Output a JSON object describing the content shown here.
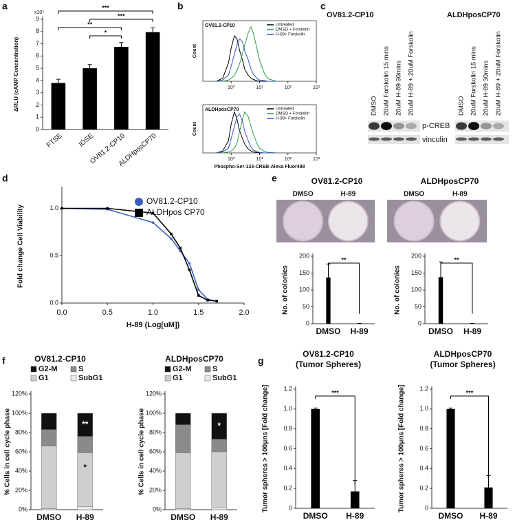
{
  "panels": [
    "a",
    "b",
    "c",
    "d",
    "e",
    "f",
    "g"
  ],
  "blot": {
    "cell_lines": [
      "OV81.2-CP10",
      "ALDHposCP70"
    ],
    "lanes": [
      "DMSO",
      "20uM Forskolin 15 mins",
      "20uM H-89 30mins",
      "20uM H-89 + 20uM Forskolin"
    ],
    "bands": [
      "p-CREB",
      "vinculin"
    ]
  },
  "chart_data": [
    {
      "type": "bar",
      "categories": [
        "FTSE",
        "IOSE",
        "OV81.2-CP10",
        "ALDHposCP70"
      ],
      "values": [
        3.8,
        5.0,
        6.75,
        7.95
      ],
      "errors": [
        0.3,
        0.3,
        0.35,
        0.35
      ],
      "color": "#000000",
      "ylim": [
        0,
        9
      ],
      "yticks": [
        0,
        1,
        2,
        3,
        4,
        5,
        6,
        7,
        8,
        9
      ],
      "ylabel": "ΔRLU (cAMP Concentration)",
      "scale_label": "x10³",
      "annotations": [
        "***",
        "***",
        "**",
        "*"
      ]
    },
    {
      "type": "line",
      "title": "OV81.2-CP10",
      "ylabel": "Count",
      "xscale": "log",
      "xlim": [
        0.1,
        1000
      ],
      "xticks": [
        {
          "value": 1,
          "label": "10⁰"
        },
        {
          "value": 10,
          "label": "10¹"
        },
        {
          "value": 100,
          "label": "10²"
        },
        {
          "value": 1000,
          "label": "10³"
        }
      ],
      "ylim": [
        0,
        100
      ],
      "legend": "upper right",
      "x": [
        0.3,
        0.5,
        0.8,
        1,
        1.3,
        1.6,
        2,
        2.5,
        3,
        4,
        5,
        6,
        8,
        10,
        15,
        20,
        40
      ],
      "series": [
        {
          "name": "Untreated",
          "color": "#000000",
          "values": [
            0,
            5,
            30,
            55,
            75,
            70,
            50,
            35,
            20,
            10,
            5,
            3,
            1,
            0,
            0,
            0,
            0
          ]
        },
        {
          "name": "DMSO + Forskolin",
          "color": "#2e9a3e",
          "values": [
            0,
            0,
            2,
            5,
            10,
            18,
            30,
            45,
            60,
            80,
            90,
            80,
            55,
            35,
            12,
            4,
            0
          ]
        },
        {
          "name": "H-89+ Forskolin",
          "color": "#3350c8",
          "values": [
            0,
            2,
            10,
            25,
            45,
            60,
            70,
            65,
            50,
            35,
            20,
            12,
            5,
            2,
            1,
            0,
            0
          ]
        }
      ]
    },
    {
      "type": "line",
      "title": "ALDHposCP70",
      "ylabel": "Count",
      "xlabel": "Phospho-Ser-133-CREB-Alexa Fluor488",
      "xscale": "log",
      "xlim": [
        0.1,
        1000
      ],
      "xticks": [
        {
          "value": 1,
          "label": "10⁰"
        },
        {
          "value": 10,
          "label": "10¹"
        },
        {
          "value": 100,
          "label": "10²"
        },
        {
          "value": 1000,
          "label": "10³"
        }
      ],
      "ylim": [
        0,
        100
      ],
      "legend": "upper right",
      "x": [
        0.3,
        0.5,
        0.8,
        1,
        1.3,
        1.6,
        2,
        2.5,
        3,
        4,
        5,
        6,
        8,
        10,
        15,
        20,
        40
      ],
      "series": [
        {
          "name": "Untreated",
          "color": "#000000",
          "values": [
            0,
            4,
            25,
            60,
            85,
            70,
            45,
            30,
            18,
            8,
            4,
            2,
            1,
            0,
            0,
            0,
            0
          ]
        },
        {
          "name": "DMSO + Forskolin",
          "color": "#2e9a3e",
          "values": [
            0,
            0,
            2,
            4,
            10,
            20,
            45,
            70,
            85,
            75,
            55,
            40,
            20,
            10,
            3,
            1,
            0
          ]
        },
        {
          "name": "H-89+ Forskolin",
          "color": "#3350c8",
          "values": [
            0,
            2,
            10,
            30,
            55,
            75,
            80,
            65,
            45,
            25,
            12,
            6,
            3,
            1,
            0,
            0,
            0
          ]
        }
      ]
    },
    {
      "type": "line",
      "xlabel": "H-89  (Log[uM])",
      "ylabel": "Fold change Cell Viability",
      "legend": "upper right",
      "xlim": [
        0,
        2
      ],
      "xticks": [
        {
          "value": 0,
          "label": "0.0"
        },
        0.5,
        {
          "value": 1,
          "label": "1.0"
        },
        1.5,
        {
          "value": 2,
          "label": "2.0"
        }
      ],
      "ylim": [
        0,
        1.2
      ],
      "yticks": [
        {
          "value": 0,
          "label": "0.0"
        },
        0.5,
        {
          "value": 1,
          "label": "1.0"
        }
      ],
      "x": [
        0,
        0.5,
        1.0,
        1.2,
        1.3,
        1.4,
        1.5,
        1.6,
        1.7
      ],
      "series": [
        {
          "name": "OV81.2-CP10",
          "color": "#3b5fc0",
          "marker": "circle",
          "values": [
            1.0,
            0.99,
            0.85,
            0.68,
            0.55,
            0.42,
            0.14,
            0.04,
            0.02
          ]
        },
        {
          "name": "ALDHpos CP70",
          "color": "#000000",
          "marker": "square",
          "values": [
            1.0,
            1.0,
            0.95,
            0.73,
            0.58,
            0.35,
            0.08,
            0.03,
            0.02
          ]
        }
      ]
    },
    {
      "type": "bar",
      "title": "OV81.2-CP10",
      "categories": [
        "DMSO",
        "H-89"
      ],
      "values": [
        137,
        1
      ],
      "errors": [
        40,
        0
      ],
      "color": "#000000",
      "ylim": [
        0,
        200
      ],
      "yticks": [
        0,
        50,
        100,
        150,
        200
      ],
      "ylabel": "No. of colonies",
      "annotations": [
        "**"
      ]
    },
    {
      "type": "bar",
      "title": "ALDHposCP70",
      "categories": [
        "DMSO",
        "H-89"
      ],
      "values": [
        138,
        1
      ],
      "errors": [
        45,
        0
      ],
      "color": "#000000",
      "ylim": [
        0,
        200
      ],
      "yticks": [
        0,
        50,
        100,
        150,
        200
      ],
      "ylabel": "No. of colonies",
      "annotations": [
        "**"
      ]
    },
    {
      "type": "stacked_bar",
      "title": "OV81.2-CP10",
      "categories": [
        "DMSO",
        "H-89"
      ],
      "ylabel": "% Cells in cell cycle phase",
      "ylim": [
        0,
        120
      ],
      "yticks": [
        {
          "value": 0,
          "label": "0%"
        },
        {
          "value": 20,
          "label": "20%"
        },
        {
          "value": 40,
          "label": "40%"
        },
        {
          "value": 60,
          "label": "60%"
        },
        {
          "value": 80,
          "label": "80%"
        },
        {
          "value": 100,
          "label": "100%"
        },
        {
          "value": 120,
          "label": "120%"
        }
      ],
      "series": [
        {
          "name": "G2-M",
          "color": "#111111",
          "values": [
            17,
            24
          ]
        },
        {
          "name": "S",
          "color": "#8a8a8a",
          "values": [
            17,
            17
          ]
        },
        {
          "name": "G1",
          "color": "#cfcfcf",
          "values": [
            65,
            56
          ]
        },
        {
          "name": "SubG1",
          "color": "#ececec",
          "values": [
            1,
            3
          ]
        }
      ],
      "annotations": [
        "**",
        "*"
      ]
    },
    {
      "type": "stacked_bar",
      "title": "ALDHposCP70",
      "categories": [
        "DMSO",
        "H-89"
      ],
      "ylabel": "% Cells in cell cycle phase",
      "ylim": [
        0,
        120
      ],
      "yticks": [
        {
          "value": 0,
          "label": "0%"
        },
        {
          "value": 20,
          "label": "20%"
        },
        {
          "value": 40,
          "label": "40%"
        },
        {
          "value": 60,
          "label": "60%"
        },
        {
          "value": 80,
          "label": "80%"
        },
        {
          "value": 100,
          "label": "100%"
        },
        {
          "value": 120,
          "label": "120%"
        }
      ],
      "series": [
        {
          "name": "G2-M",
          "color": "#111111",
          "values": [
            12,
            27
          ]
        },
        {
          "name": "S",
          "color": "#8a8a8a",
          "values": [
            29,
            13
          ]
        },
        {
          "name": "G1",
          "color": "#cfcfcf",
          "values": [
            58,
            58
          ]
        },
        {
          "name": "SubG1",
          "color": "#ececec",
          "values": [
            1,
            2
          ]
        }
      ],
      "annotations": [
        "*"
      ]
    },
    {
      "type": "bar",
      "title": "OV81.2-CP10",
      "subtitle": "(Tumor Spheres)",
      "categories": [
        "DMSO",
        "H-89"
      ],
      "values": [
        1.0,
        0.17
      ],
      "errors": [
        0.01,
        0.11
      ],
      "color": "#000000",
      "ylim": [
        0,
        1.2
      ],
      "yticks": [
        0,
        0.2,
        0.4,
        0.6,
        0.8,
        {
          "value": 1,
          "label": "1.0"
        },
        1.2
      ],
      "ylabel": "Tumor spheres > 100μns [Fold change]",
      "annotations": [
        "***"
      ]
    },
    {
      "type": "bar",
      "title": "ALDHposCP70",
      "subtitle": "(Tumor Spheres)",
      "categories": [
        "DMSO",
        "H-89"
      ],
      "values": [
        1.0,
        0.21
      ],
      "errors": [
        0.01,
        0.12
      ],
      "color": "#000000",
      "ylim": [
        0,
        1.2
      ],
      "yticks": [
        0,
        0.2,
        0.4,
        0.6,
        0.8,
        {
          "value": 1,
          "label": "1.0"
        },
        1.2
      ],
      "ylabel": "Tumor spheres > 100μns [Fold change]",
      "annotations": [
        "***"
      ]
    }
  ]
}
